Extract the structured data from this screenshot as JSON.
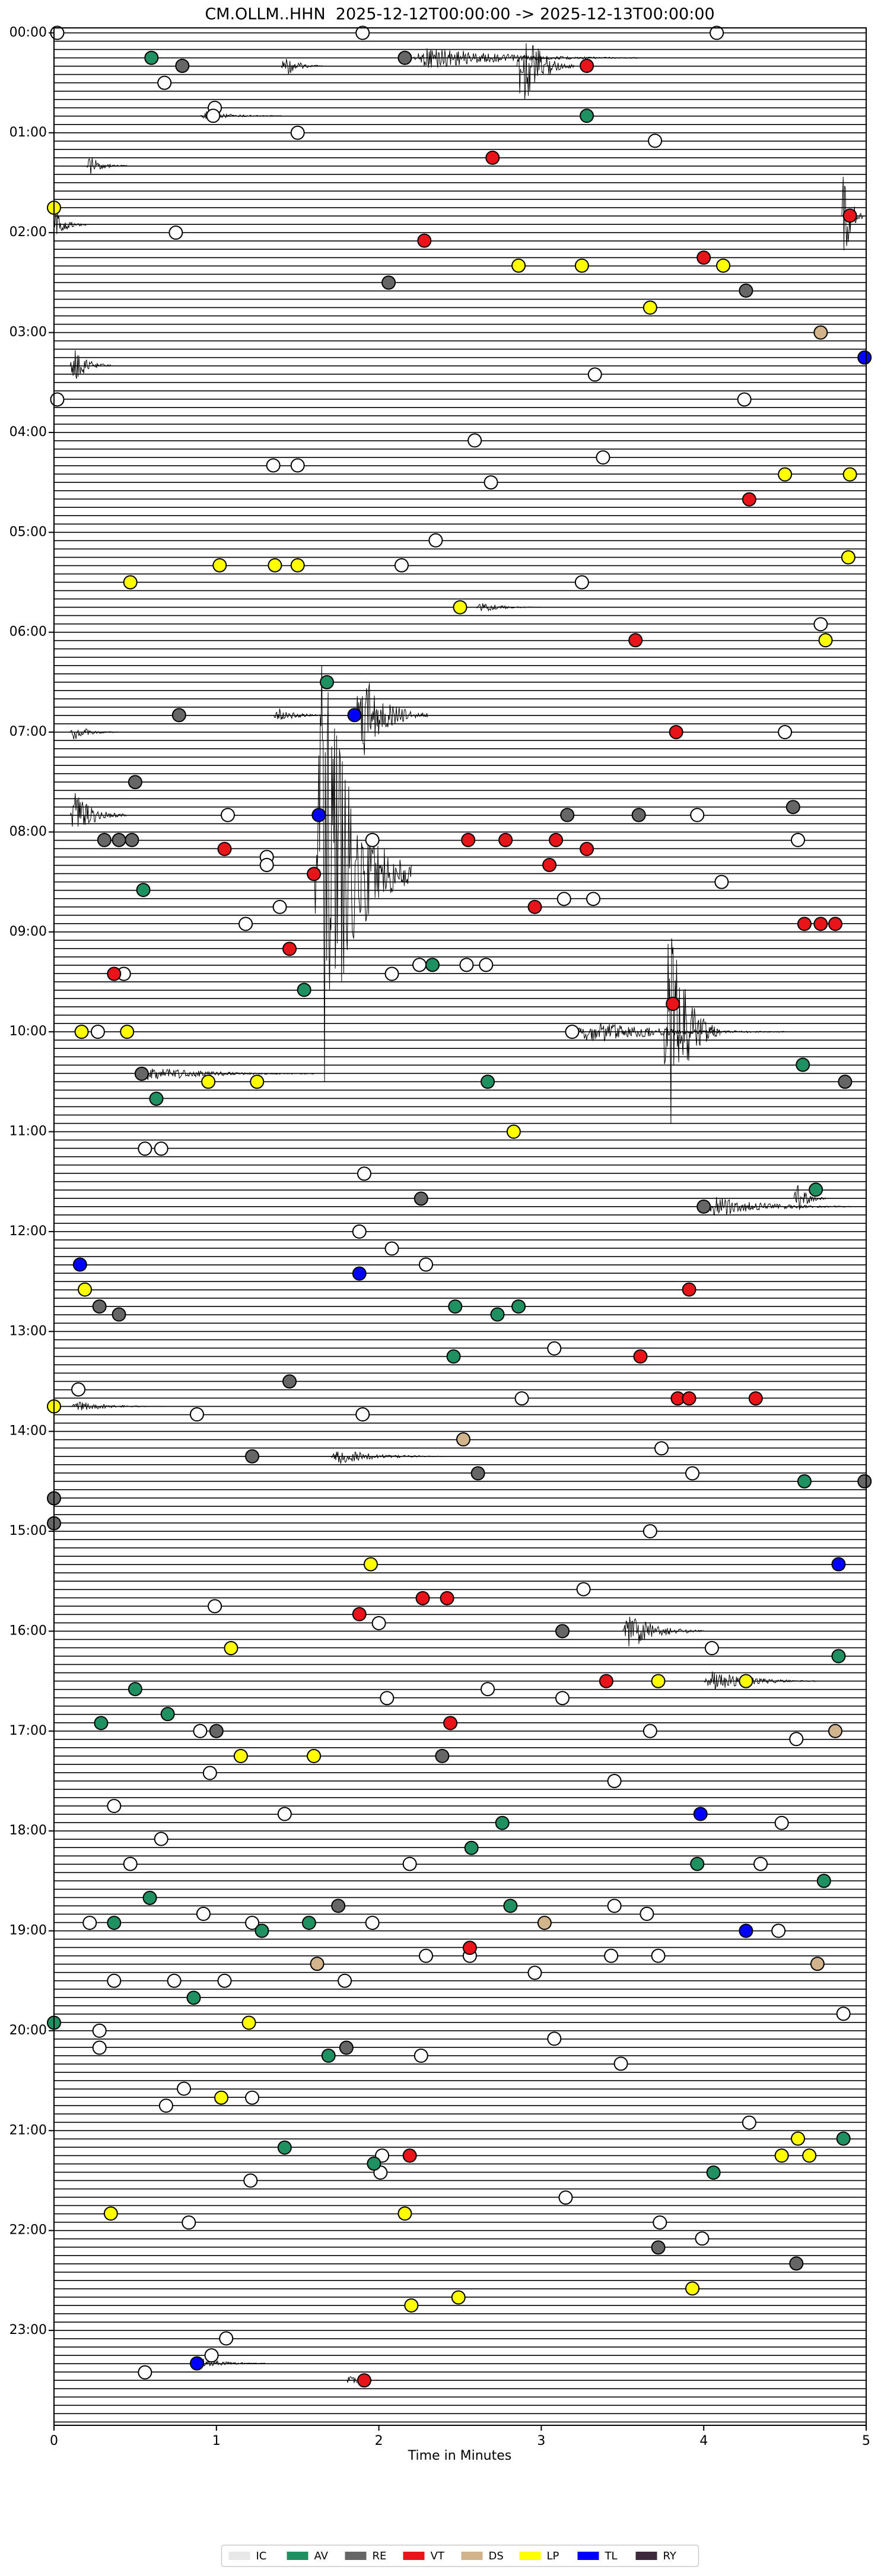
{
  "chart_data": {
    "type": "helicorder",
    "title": "CM.OLLM..HHN  2025-12-12T00:00:00 -> 2025-12-13T00:00:00",
    "x_label": "Time in Minutes",
    "xlim": [
      0,
      5
    ],
    "xticks": [
      0,
      1,
      2,
      3,
      4,
      5
    ],
    "ylim": [
      -0.05,
      23.95
    ],
    "y_inverted": true,
    "rows_per_hour": 12,
    "yticks": [
      {
        "value": 0,
        "label": "00:00"
      },
      {
        "value": 1,
        "label": "01:00"
      },
      {
        "value": 2,
        "label": "02:00"
      },
      {
        "value": 3,
        "label": "03:00"
      },
      {
        "value": 4,
        "label": "04:00"
      },
      {
        "value": 5,
        "label": "05:00"
      },
      {
        "value": 6,
        "label": "06:00"
      },
      {
        "value": 7,
        "label": "07:00"
      },
      {
        "value": 8,
        "label": "08:00"
      },
      {
        "value": 9,
        "label": "09:00"
      },
      {
        "value": 10,
        "label": "10:00"
      },
      {
        "value": 11,
        "label": "11:00"
      },
      {
        "value": 12,
        "label": "12:00"
      },
      {
        "value": 13,
        "label": "13:00"
      },
      {
        "value": 14,
        "label": "14:00"
      },
      {
        "value": 15,
        "label": "15:00"
      },
      {
        "value": 16,
        "label": "16:00"
      },
      {
        "value": 17,
        "label": "17:00"
      },
      {
        "value": 18,
        "label": "18:00"
      },
      {
        "value": 19,
        "label": "19:00"
      },
      {
        "value": 20,
        "label": "20:00"
      },
      {
        "value": 21,
        "label": "21:00"
      },
      {
        "value": 22,
        "label": "22:00"
      },
      {
        "value": 23,
        "label": "23:00"
      }
    ],
    "trace_color": "#000000",
    "legend": "bottom",
    "bursts": [
      {
        "x0": 1.4,
        "x1": 1.65,
        "y": 0.33,
        "amplitude": 0.12
      },
      {
        "x0": 2.2,
        "x1": 3.6,
        "y": 0.25,
        "amplitude": 0.12
      },
      {
        "x0": 2.85,
        "x1": 3.2,
        "y": 0.33,
        "amplitude": 0.5
      },
      {
        "x0": 0.9,
        "x1": 1.4,
        "y": 0.83,
        "amplitude": 0.05
      },
      {
        "x0": 0.2,
        "x1": 0.45,
        "y": 1.33,
        "amplitude": 0.1
      },
      {
        "x0": 4.85,
        "x1": 4.98,
        "y": 1.83,
        "amplitude": 0.6
      },
      {
        "x0": 0,
        "x1": 0.2,
        "y": 1.92,
        "amplitude": 0.15
      },
      {
        "x0": 0.1,
        "x1": 0.35,
        "y": 3.33,
        "amplitude": 0.2
      },
      {
        "x0": 2.6,
        "x1": 3.0,
        "y": 5.75,
        "amplitude": 0.05
      },
      {
        "x0": 1.85,
        "x1": 2.3,
        "y": 6.83,
        "amplitude": 0.5
      },
      {
        "x0": 1.35,
        "x1": 1.7,
        "y": 6.83,
        "amplitude": 0.08
      },
      {
        "x0": 0.1,
        "x1": 0.4,
        "y": 7.0,
        "amplitude": 0.08
      },
      {
        "x0": 0.1,
        "x1": 0.45,
        "y": 7.83,
        "amplitude": 0.25
      },
      {
        "x0": 1.6,
        "x1": 2.2,
        "y": 8.42,
        "amplitude": 2.4
      },
      {
        "x0": 3.75,
        "x1": 4.1,
        "y": 10.0,
        "amplitude": 1.3
      },
      {
        "x0": 3.2,
        "x1": 4.5,
        "y": 10.0,
        "amplitude": 0.12
      },
      {
        "x0": 0.5,
        "x1": 1.6,
        "y": 10.42,
        "amplitude": 0.08
      },
      {
        "x0": 4.0,
        "x1": 4.95,
        "y": 11.75,
        "amplitude": 0.1
      },
      {
        "x0": 4.55,
        "x1": 4.75,
        "y": 11.67,
        "amplitude": 0.2
      },
      {
        "x0": 1.7,
        "x1": 2.4,
        "y": 14.25,
        "amplitude": 0.08
      },
      {
        "x0": 3.5,
        "x1": 4.0,
        "y": 16.0,
        "amplitude": 0.2
      },
      {
        "x0": 4.0,
        "x1": 4.7,
        "y": 16.5,
        "amplitude": 0.12
      },
      {
        "x0": 0.1,
        "x1": 0.7,
        "y": 13.75,
        "amplitude": 0.05
      },
      {
        "x0": 0.85,
        "x1": 1.3,
        "y": 23.33,
        "amplitude": 0.06
      },
      {
        "x0": 1.8,
        "x1": 2.0,
        "y": 23.5,
        "amplitude": 0.05
      }
    ],
    "series": [
      {
        "name": "IC",
        "color": "#e8e8e8",
        "x": [
          0.02,
          1.9,
          4.08,
          0.68,
          0.99,
          0.98,
          1.5,
          3.7,
          0.75,
          3.33,
          0.02,
          4.25,
          2.59,
          3.38,
          1.35,
          1.5,
          2.69,
          2.35,
          2.14,
          3.25,
          4.72,
          4.5,
          1.07,
          3.96,
          1.96,
          4.58,
          1.31,
          1.31,
          4.11,
          3.14,
          3.32,
          1.39,
          1.18,
          2.25,
          2.54,
          2.66,
          2.08,
          0.43,
          0.27,
          3.19,
          0.56,
          0.66,
          1.91,
          1.88,
          2.08,
          2.29,
          3.08,
          0.15,
          2.88,
          0.88,
          1.9,
          3.74,
          3.93,
          3.67,
          3.26,
          0.99,
          2.0,
          4.05,
          2.05,
          2.67,
          3.13,
          0.9,
          3.67,
          4.57,
          0.96,
          3.45,
          0.37,
          1.42,
          4.48,
          0.66,
          0.47,
          2.19,
          4.35,
          0.92,
          3.65,
          3.45,
          0.22,
          1.22,
          1.96,
          4.46,
          2.29,
          2.56,
          3.43,
          3.72,
          2.96,
          0.37,
          0.74,
          1.05,
          1.79,
          4.86,
          0.28,
          3.08,
          0.28,
          2.26,
          3.49,
          0.8,
          0.69,
          1.22,
          4.28,
          2.02,
          1.21,
          2.01,
          3.15,
          0.83,
          3.73,
          3.99,
          1.06,
          0.97,
          0.56
        ],
        "y": [
          0,
          0,
          0,
          0.5,
          0.75,
          0.83,
          1.0,
          1.08,
          2.0,
          3.42,
          3.67,
          3.67,
          4.08,
          4.25,
          4.33,
          4.33,
          4.5,
          5.08,
          5.33,
          5.5,
          5.92,
          7.0,
          7.83,
          7.83,
          8.08,
          8.08,
          8.25,
          8.33,
          8.5,
          8.67,
          8.67,
          8.75,
          8.92,
          9.33,
          9.33,
          9.33,
          9.42,
          9.42,
          10.0,
          10.0,
          11.17,
          11.17,
          11.42,
          12.0,
          12.17,
          12.33,
          13.17,
          13.58,
          13.67,
          13.83,
          13.83,
          14.17,
          14.42,
          15.0,
          15.58,
          15.75,
          15.92,
          16.17,
          16.67,
          16.58,
          16.67,
          17.0,
          17.0,
          17.08,
          17.42,
          17.5,
          17.75,
          17.83,
          17.92,
          18.08,
          18.33,
          18.33,
          18.33,
          18.83,
          18.83,
          18.75,
          18.92,
          18.92,
          18.92,
          19.0,
          19.25,
          19.25,
          19.25,
          19.25,
          19.42,
          19.5,
          19.5,
          19.5,
          19.5,
          19.83,
          20.0,
          20.08,
          20.17,
          20.25,
          20.33,
          20.58,
          20.75,
          20.67,
          20.92,
          21.25,
          21.5,
          21.42,
          21.67,
          21.92,
          21.92,
          22.08,
          23.08,
          23.25,
          23.42
        ]
      },
      {
        "name": "AV",
        "color": "#1f9060",
        "x": [
          0.6,
          3.28,
          1.68,
          0.55,
          2.33,
          1.54,
          4.61,
          2.67,
          0.63,
          4.69,
          2.47,
          2.86,
          2.73,
          2.46,
          4.62,
          4.83,
          0.5,
          0.7,
          0.29,
          2.76,
          2.57,
          3.96,
          4.74,
          0.59,
          2.81,
          0.37,
          1.57,
          1.28,
          0.86,
          0,
          1.69,
          4.86,
          1.42,
          1.97,
          4.06
        ],
        "y": [
          0.25,
          0.83,
          6.5,
          8.58,
          9.33,
          9.58,
          10.33,
          10.5,
          10.67,
          11.58,
          12.75,
          12.75,
          12.83,
          13.25,
          14.5,
          16.25,
          16.58,
          16.83,
          16.92,
          17.92,
          18.17,
          18.33,
          18.5,
          18.67,
          18.75,
          18.92,
          18.92,
          19.0,
          19.67,
          19.92,
          20.25,
          21.08,
          21.17,
          21.33,
          21.42
        ]
      },
      {
        "name": "RE",
        "color": "#666666",
        "x": [
          0.79,
          2.16,
          2.06,
          4.26,
          0.77,
          0.5,
          4.55,
          3.16,
          3.6,
          0.31,
          0.4,
          0.48,
          0.54,
          4.87,
          2.26,
          4.0,
          0.28,
          0.4,
          1.45,
          1.22,
          2.61,
          4.99,
          0,
          0,
          3.13,
          1.0,
          2.39,
          1.75,
          1.8,
          3.72,
          4.57
        ],
        "y": [
          0.33,
          0.25,
          2.5,
          2.58,
          6.83,
          7.5,
          7.75,
          7.83,
          7.83,
          8.08,
          8.08,
          8.08,
          10.42,
          10.5,
          11.67,
          11.75,
          12.75,
          12.83,
          13.5,
          14.25,
          14.42,
          14.5,
          14.67,
          14.92,
          16.0,
          17.0,
          17.25,
          18.75,
          20.17,
          22.17,
          22.33
        ]
      },
      {
        "name": "VT",
        "color": "#e8141a",
        "x": [
          3.28,
          2.7,
          4.9,
          2.28,
          4.0,
          4.28,
          3.58,
          3.83,
          2.55,
          2.78,
          3.09,
          1.05,
          3.28,
          3.05,
          1.6,
          2.96,
          4.62,
          4.72,
          4.81,
          1.45,
          0.37,
          3.81,
          3.91,
          3.61,
          3.84,
          3.91,
          4.32,
          2.27,
          2.42,
          1.88,
          3.4,
          2.44,
          2.56,
          2.19,
          1.91
        ],
        "y": [
          0.33,
          1.25,
          1.83,
          2.08,
          2.25,
          4.67,
          6.08,
          7.0,
          8.08,
          8.08,
          8.08,
          8.17,
          8.17,
          8.33,
          8.42,
          8.75,
          8.92,
          8.92,
          8.92,
          9.17,
          9.42,
          9.72,
          12.58,
          13.25,
          13.67,
          13.67,
          13.67,
          15.67,
          15.67,
          15.83,
          16.5,
          16.92,
          19.17,
          21.25,
          23.5
        ]
      },
      {
        "name": "DS",
        "color": "#d2b48c",
        "x": [
          4.72,
          2.52,
          4.81,
          3.02,
          1.62,
          4.7
        ],
        "y": [
          3.0,
          14.08,
          17.0,
          18.92,
          19.33,
          19.33
        ]
      },
      {
        "name": "LP",
        "color": "#ffff00",
        "x": [
          0,
          2.86,
          3.25,
          4.12,
          3.67,
          4.5,
          4.9,
          4.89,
          1.02,
          1.36,
          1.5,
          0.47,
          2.5,
          4.75,
          0.17,
          0.45,
          0.95,
          1.25,
          2.83,
          0.19,
          0,
          1.95,
          1.09,
          3.72,
          4.26,
          1.15,
          1.6,
          1.2,
          1.03,
          4.58,
          4.48,
          4.65,
          0.35,
          2.16,
          3.93,
          2.49,
          2.2
        ],
        "y": [
          1.75,
          2.33,
          2.33,
          2.33,
          2.75,
          4.42,
          4.42,
          5.25,
          5.33,
          5.33,
          5.33,
          5.5,
          5.75,
          6.08,
          10.0,
          10.0,
          10.5,
          10.5,
          11.0,
          12.58,
          13.75,
          15.33,
          16.17,
          16.5,
          16.5,
          17.25,
          17.25,
          19.92,
          20.67,
          21.08,
          21.25,
          21.25,
          21.83,
          21.83,
          22.58,
          22.67,
          22.75
        ]
      },
      {
        "name": "TL",
        "color": "#0000ff",
        "x": [
          4.99,
          1.85,
          1.63,
          0.16,
          1.88,
          4.83,
          3.98,
          4.26,
          0.88
        ],
        "y": [
          3.25,
          6.83,
          7.83,
          12.33,
          12.42,
          15.33,
          17.83,
          19.0,
          23.33
        ]
      },
      {
        "name": "RY",
        "color": "#3d2a3d",
        "x": [],
        "y": []
      }
    ]
  }
}
